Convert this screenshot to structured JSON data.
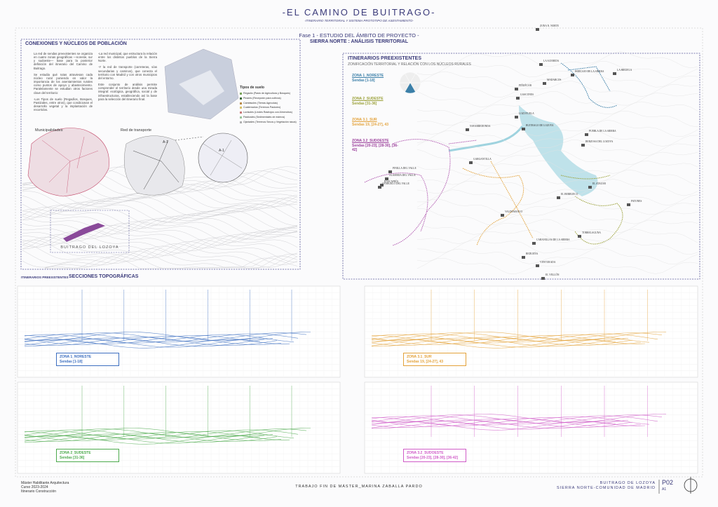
{
  "header": {
    "title": "-EL CAMINO DE BUITRAGO-",
    "subtitle": "-ITINERARIO TERRITORIAL Y SISTEMA PROTOTIPO DE ASENTAMIENTO-",
    "phase": "Fase 1 - ESTUDIO DEL ÁMBITO DE PROYECTO -",
    "section": "SIERRA NORTE : ANÁLISIS TERRITORIAL"
  },
  "left_panel": {
    "title": "CONEXIONES Y NÚCLEOS DE POBLACIÓN",
    "col1": [
      "La red de sendas preexistentes se organiza en cuatro zonas geográficas —noreste, sur y sudoeste— base para la posterior definición del itinerario del Camino de Buitrago.",
      "Se estudia qué rutas atraviesan cada núcleo rural poniendo en valor la importancia de los asentamientos rurales como puntos de apoyo y abastecimiento. Paralelamente se estudian otros factores clave del territorio:",
      "-Los Tipos de suelo (Regadíos, Bosques, Pastizales, entre otros), que condicionan el desarrollo vegetal y la implantación de recorridos."
    ],
    "col2": [
      "-La red municipal, que estructura la relación entre los distintos pueblos de la Sierra Norte.",
      "-Y la red de transporte (carreteras, vías secundarias y caminos), que conecta el territorio con Madrid y con otros municipios del entorno.",
      "Este conjunto de análisis permite comprender el territorio desde una mirada integral: ecológica, geográfica, social y de infraestructuras, estableciendo así la base para la selección del itinerario final."
    ],
    "soil_title": "Tipos de suelo",
    "soil_types": [
      "Regadío (Pasto de Agricultura y Bosques)",
      "Pinares (Recepción para cultivos)",
      "Cambisoles (Tierras Agrícolas)",
      "Cuaternarios (Terrenos Pastoreo)",
      "Luvisoles (Lindes Rastrojos con Almendros)",
      "Pastizales (Sedimentales de esteros)",
      "Ojarizales (Terrenos Secos y Vegetación rasos)"
    ],
    "municipalities": "Municipalidades",
    "transport": "Red de transporte",
    "road": "A-1",
    "road_zoom": "A-1",
    "town": "BUITRAGO DEL LOZOYA"
  },
  "map_panel": {
    "title": "ITINERARIOS PREEXISTENTES",
    "subtitle": "ZONIFICACIÓN TERRITORIAL Y RELACIÓN CON LOS NÚCLEOS RURALES",
    "zones": [
      {
        "name": "ZONA 1_NORESTE",
        "paths": "Sendas [1-18]"
      },
      {
        "name": "ZONA 2_SUDESTE",
        "paths": "Sendas [31-36]"
      },
      {
        "name": "ZONA 3.1_SUR",
        "paths": "Sendas 19, [24-27], 43"
      },
      {
        "name": "ZONA 3.2_SUDOESTE",
        "paths": "Sendas [20-23], [28-30], [36-42]"
      }
    ],
    "places": [
      "ZONA N. NORTE",
      "LA ACEBEDA",
      "HORCAJO DE LA SIERRA",
      "LA HIRUELA",
      "MADARCOS",
      "PIÑUÉCAR",
      "GASCONES",
      "BUITRAGO DE LOZOYA",
      "LOZOYUELA",
      "NAVARREDONDA",
      "GARGANTILLA",
      "PINILLA DEL VALLE",
      "ALAMEDA DEL VALLE",
      "OTERUELO DEL VALLE",
      "RASCAFRÍA",
      "PUEBLA DE LA SIERRA",
      "BERZOSA DEL LOZOYA",
      "EL ATAZAR",
      "PATONES",
      "EL BERRUECO",
      "CABANILLAS DE LA SIERRA",
      "VALDEMANCO",
      "REDUEÑA",
      "VENTURADA",
      "TORRELAGUNA",
      "EL VELLÓN",
      "EL MOLAR"
    ]
  },
  "profiles": {
    "kicker": "ITINERARIOS PREEXISTENTES",
    "title": "SECCIONES TOPOGRÁFICAS",
    "boxes": [
      {
        "name": "ZONA 1_NORESTE",
        "paths": "Sendas [1-18]"
      },
      {
        "name": "ZONA 3.1_SUR",
        "paths": "Sendas 19, [24-27], 43"
      },
      {
        "name": "ZONA 2_SUDESTE",
        "paths": "Sendas [31-36]"
      },
      {
        "name": "ZONA 3.2_SUDOESTE",
        "paths": "Sendas [20-23], [28-30], [36-42]"
      }
    ]
  },
  "footer": {
    "left": [
      "Máster Habilitante Arquitectura",
      "Curso 2023-2024",
      "Itinerario Construcción"
    ],
    "center": "TRABAJO FIN DE MÁSTER_MARINA ZABALLA PARDO",
    "right": [
      "BUITRAGO DE LOZOYA",
      "SIERRA NORTE-COMUNIDAD DE MADRID"
    ],
    "sheet": "P02",
    "size": "A1"
  }
}
